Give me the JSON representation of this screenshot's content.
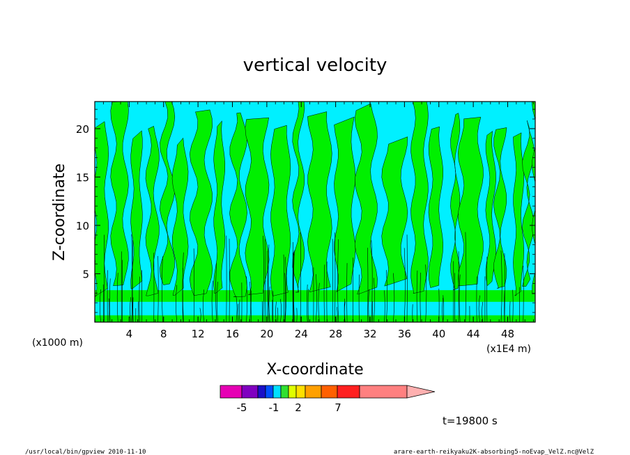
{
  "chart_data": {
    "type": "heatmap",
    "title": "vertical velocity",
    "xlabel": "X-coordinate",
    "ylabel": "Z-coordinate",
    "x_unit": "(x1000 m)",
    "x_unit_secondary": "(x1E4 m)",
    "xlim": [
      0,
      51.2
    ],
    "ylim": [
      0,
      22.8
    ],
    "x_ticks": [
      4,
      8,
      12,
      16,
      20,
      24,
      28,
      32,
      36,
      40,
      44,
      48
    ],
    "x_tick_labels": [
      "4",
      "8",
      "12",
      "16",
      "20",
      "24",
      "28",
      "32",
      "36",
      "40",
      "44",
      "48"
    ],
    "y_ticks": [
      5,
      10,
      15,
      20
    ],
    "y_tick_labels": [
      "5",
      "10",
      "15",
      "20"
    ],
    "colorbar": {
      "colors": [
        "#e600b4",
        "#8000c0",
        "#1a10c8",
        "#0050ff",
        "#00e0ff",
        "#30e030",
        "#e0ff00",
        "#ffe000",
        "#ffa000",
        "#ff6000",
        "#ff2020",
        "#ff8080",
        "#ffb0b0"
      ],
      "tick_labels": [
        "-5",
        "-1",
        "2",
        "7"
      ],
      "tick_values": [
        -5,
        -1,
        2,
        7
      ]
    },
    "time_label": "t=19800 s",
    "background_band_colors": [
      "#00f0ff",
      "#00f000"
    ]
  },
  "footer": {
    "left": "/usr/local/bin/gpview  2010-11-10",
    "right": "arare-earth-reikyaku2K-absorbing5-noEvap_VelZ.nc@VelZ"
  }
}
